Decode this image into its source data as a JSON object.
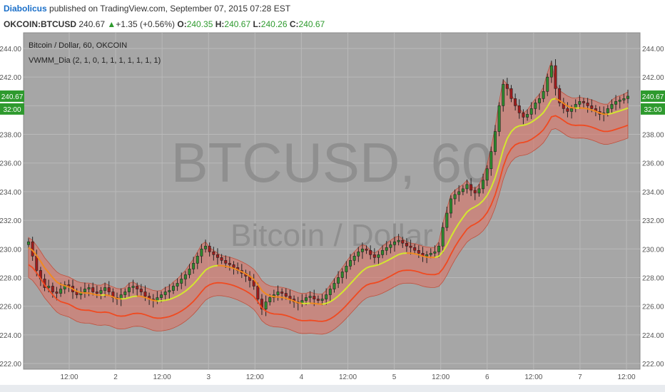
{
  "header": {
    "author": "Diabolicus",
    "published_text": "published on TradingView.com, September 07, 2015 07:28 EST"
  },
  "quote": {
    "symbol": "OKCOIN:BTCUSD",
    "last": "240.67",
    "arrow": "▲",
    "change": "+1.35 (+0.56%)",
    "open_label": "O:",
    "open": "240.35",
    "high_label": "H:",
    "high": "240.67",
    "low_label": "L:",
    "low": "240.26",
    "close_label": "C:",
    "close": "240.67"
  },
  "chart_data": {
    "type": "candlestick",
    "title": "Bitcoin / Dollar, 60, OKCOIN",
    "indicator_label": "VWMM_Dia (2, 1, 0, 1, 1, 1, 1, 1, 1, 1)",
    "watermark_symbol": "BTCUSD, 60",
    "watermark_name": "Bitcoin / Dollar",
    "ylim": [
      221.5,
      245.2
    ],
    "y_ticks": [
      "244.00",
      "242.00",
      "240.00",
      "238.00",
      "236.00",
      "234.00",
      "232.00",
      "230.00",
      "228.00",
      "226.00",
      "224.00",
      "222.00"
    ],
    "x_ticks": [
      "12:00",
      "2",
      "12:00",
      "3",
      "12:00",
      "4",
      "12:00",
      "5",
      "12:00",
      "6",
      "12:00",
      "7",
      "12:00"
    ],
    "last_price_label": "240.67",
    "countdown_label": "32:00",
    "grid": true,
    "colors": {
      "background": "#a6a6a6",
      "up_candle": "#2e8b2e",
      "down_candle": "#a11c1c",
      "band_fill": "#e07060",
      "mid_line_up": "#d4e82e",
      "mid_line_down": "#f08a20",
      "lower_line": "#f04a20",
      "price_tag": "#2e9a2e"
    },
    "series": [
      {
        "name": "Price",
        "values": [
          230.5,
          229.5,
          228.5,
          227.9,
          227.3,
          227.4,
          227.0,
          226.9,
          227.2,
          227.5,
          227.4,
          227.0,
          226.8,
          227.0,
          227.2,
          227.3,
          227.0,
          226.9,
          227.1,
          227.3,
          227.0,
          226.6,
          226.5,
          226.8,
          227.0,
          227.3,
          227.4,
          227.2,
          227.0,
          226.7,
          226.5,
          226.4,
          226.6,
          226.8,
          227.0,
          227.1,
          227.4,
          227.6,
          227.9,
          228.2,
          228.6,
          229.0,
          229.5,
          230.0,
          230.2,
          229.8,
          229.6,
          229.4,
          229.2,
          229.0,
          228.9,
          228.7,
          228.5,
          228.3,
          228.1,
          227.8,
          227.4,
          226.5,
          225.8,
          226.3,
          226.6,
          226.8,
          227.0,
          226.9,
          226.7,
          226.5,
          226.3,
          226.2,
          226.4,
          226.6,
          226.7,
          226.5,
          226.4,
          226.5,
          226.8,
          227.2,
          227.6,
          228.0,
          228.4,
          228.8,
          229.2,
          229.5,
          229.8,
          230.0,
          229.9,
          229.6,
          229.4,
          229.6,
          229.9,
          230.1,
          230.3,
          230.5,
          230.6,
          230.4,
          230.2,
          230.1,
          229.9,
          229.7,
          229.5,
          229.6,
          229.7,
          229.8,
          230.2,
          231.5,
          232.5,
          233.5,
          233.8,
          234.0,
          234.2,
          234.5,
          234.1,
          233.9,
          234.2,
          234.8,
          235.6,
          236.8,
          238.2,
          240.0,
          241.5,
          241.2,
          240.5,
          240.0,
          239.5,
          239.2,
          239.4,
          239.8,
          240.2,
          240.5,
          241.0,
          242.0,
          242.8,
          241.2,
          240.2,
          239.8,
          239.6,
          239.8,
          240.1,
          240.3,
          240.2,
          240.0,
          239.8,
          239.6,
          239.4,
          239.5,
          239.8,
          240.1,
          240.3,
          240.4,
          240.5,
          240.67
        ]
      }
    ]
  }
}
